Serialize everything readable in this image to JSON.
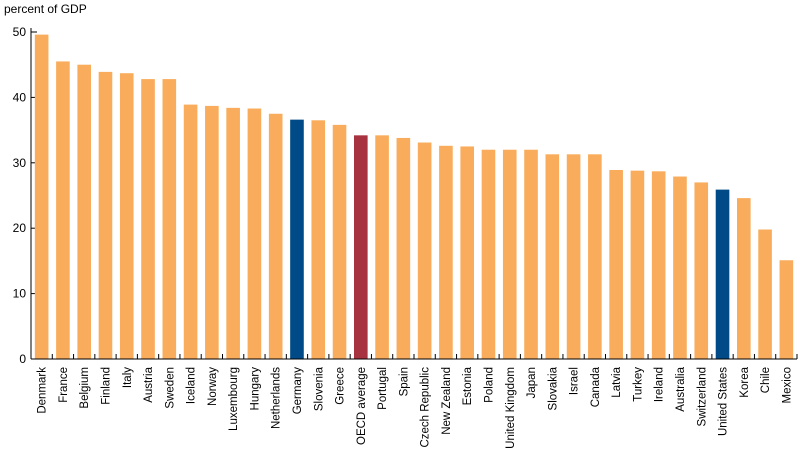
{
  "chart_data": {
    "type": "bar",
    "title": "",
    "ylabel": "percent of GDP",
    "xlabel": "",
    "ylim": [
      0,
      50
    ],
    "yticks": [
      0,
      10,
      20,
      30,
      40,
      50
    ],
    "grid": false,
    "categories": [
      "Denmark",
      "France",
      "Belgium",
      "Finland",
      "Italy",
      "Austria",
      "Sweden",
      "Iceland",
      "Norway",
      "Luxembourg",
      "Hungary",
      "Netherlands",
      "Germany",
      "Slovenia",
      "Greece",
      "OECD average",
      "Portugal",
      "Spain",
      "Czech Republic",
      "New Zealand",
      "Estonia",
      "Poland",
      "United Kingdom",
      "Japan",
      "Slovakia",
      "Israel",
      "Canada",
      "Latvia",
      "Turkey",
      "Ireland",
      "Australia",
      "Switzerland",
      "United States",
      "Korea",
      "Chile",
      "Mexico"
    ],
    "values": [
      49.6,
      45.5,
      45.0,
      43.9,
      43.7,
      42.8,
      42.8,
      38.9,
      38.7,
      38.4,
      38.3,
      37.5,
      36.6,
      36.5,
      35.8,
      34.2,
      34.2,
      33.8,
      33.1,
      32.6,
      32.5,
      32.0,
      32.0,
      32.0,
      31.3,
      31.3,
      31.3,
      28.9,
      28.8,
      28.7,
      27.9,
      27.0,
      25.9,
      24.6,
      19.8,
      15.1
    ],
    "colors": {
      "default": "#f9ad5c",
      "highlight": "#004b87",
      "average": "#a83340"
    },
    "bar_colors": [
      "default",
      "default",
      "default",
      "default",
      "default",
      "default",
      "default",
      "default",
      "default",
      "default",
      "default",
      "default",
      "highlight",
      "default",
      "default",
      "average",
      "default",
      "default",
      "default",
      "default",
      "default",
      "default",
      "default",
      "default",
      "default",
      "default",
      "default",
      "default",
      "default",
      "default",
      "default",
      "default",
      "highlight",
      "default",
      "default",
      "default"
    ]
  }
}
